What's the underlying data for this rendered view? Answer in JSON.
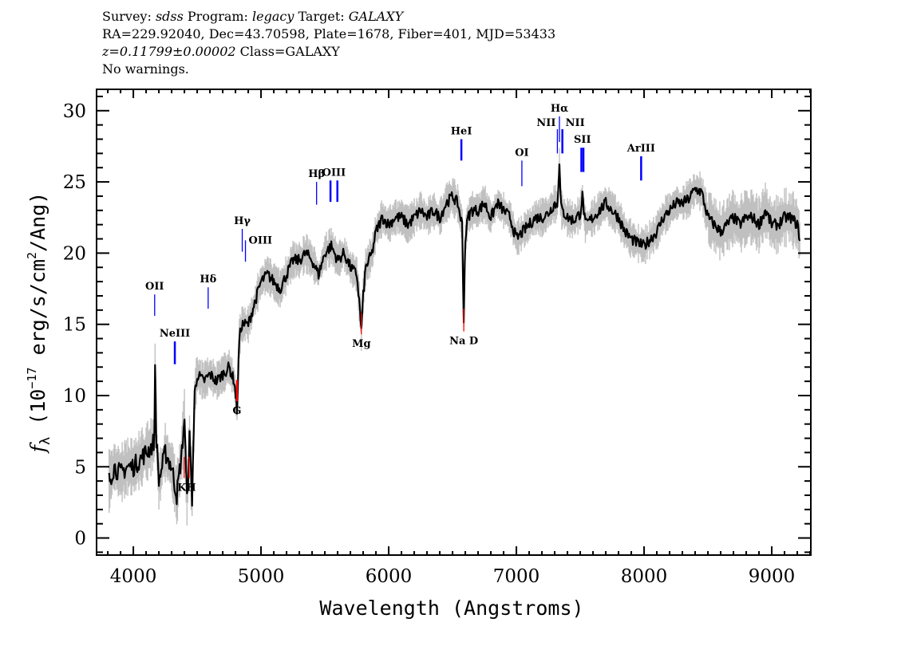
{
  "header": {
    "line1": [
      {
        "text": "Survey: ",
        "italic": false
      },
      {
        "text": "sdss",
        "italic": true
      },
      {
        "text": " Program: ",
        "italic": false
      },
      {
        "text": "legacy",
        "italic": true
      },
      {
        "text": " Target: ",
        "italic": false
      },
      {
        "text": "GALAXY",
        "italic": true
      }
    ],
    "line2": "RA=229.92040, Dec=43.70598, Plate=1678, Fiber=401, MJD=53433",
    "line3_z": "z=0.11799±0.00002",
    "line3_class": " Class=GALAXY",
    "line4": "No warnings."
  },
  "chart_data": {
    "type": "line",
    "xlabel": "Wavelength (Angstroms)",
    "ylabel": "fλ (10^-17 erg/s/cm^2/Ang)",
    "ylabel_parts": {
      "f": "f",
      "sub": "λ",
      "pre": " (10",
      "exp1": "−17",
      "mid": " erg/s/cm",
      "exp2": "2",
      "post": "/Ang)"
    },
    "xlim": [
      3712,
      9306
    ],
    "ylim": [
      -1.2,
      31.5
    ],
    "xticks": [
      4000,
      5000,
      6000,
      7000,
      8000,
      9000
    ],
    "yticks": [
      0,
      5,
      10,
      15,
      20,
      25,
      30
    ],
    "grid": false,
    "colors": {
      "flux": "#000000",
      "error": "#c0c0c0",
      "emission": "#0000ff",
      "absorption": "#ff0000"
    },
    "spectrum": {
      "x": [
        3810,
        3850,
        3900,
        3950,
        4000,
        4050,
        4100,
        4150,
        4165,
        4170,
        4180,
        4200,
        4250,
        4300,
        4340,
        4380,
        4400,
        4420,
        4440,
        4460,
        4480,
        4500,
        4550,
        4600,
        4650,
        4700,
        4750,
        4790,
        4812,
        4830,
        4850,
        4900,
        4950,
        5000,
        5050,
        5100,
        5150,
        5200,
        5250,
        5300,
        5350,
        5400,
        5450,
        5500,
        5550,
        5600,
        5650,
        5700,
        5750,
        5775,
        5786,
        5800,
        5820,
        5870,
        5900,
        5950,
        6000,
        6050,
        6100,
        6150,
        6200,
        6250,
        6300,
        6350,
        6400,
        6450,
        6500,
        6540,
        6575,
        6582,
        6588,
        6595,
        6600,
        6620,
        6650,
        6700,
        6750,
        6800,
        6850,
        6900,
        6950,
        7000,
        7050,
        7100,
        7150,
        7200,
        7250,
        7300,
        7320,
        7337,
        7345,
        7355,
        7400,
        7450,
        7500,
        7517,
        7540,
        7600,
        7650,
        7700,
        7750,
        7800,
        7850,
        7900,
        7950,
        8000,
        8050,
        8100,
        8150,
        8200,
        8250,
        8300,
        8350,
        8400,
        8450,
        8500,
        8550,
        8600,
        8650,
        8700,
        8750,
        8800,
        8850,
        8900,
        8950,
        9000,
        9050,
        9100,
        9150,
        9200,
        9220
      ],
      "y": [
        4,
        5,
        4.5,
        5,
        5,
        5.5,
        6,
        6.5,
        7,
        12.5,
        7,
        4,
        6,
        5,
        3,
        6,
        8.5,
        2.5,
        7,
        2.8,
        10,
        11.5,
        11,
        11.5,
        11,
        11.5,
        12,
        11,
        9,
        14,
        15,
        15,
        16.5,
        18,
        18.5,
        18,
        17.5,
        18.5,
        19.5,
        19.5,
        20,
        19.5,
        18.5,
        20,
        20.5,
        19.5,
        20,
        19,
        18.5,
        16,
        14.5,
        17,
        19,
        20,
        21.5,
        22.5,
        22,
        22.5,
        22.5,
        22,
        22.5,
        23,
        22.5,
        23,
        22.5,
        23.5,
        24,
        23.5,
        22,
        18,
        15.5,
        19,
        21,
        22.5,
        23,
        23,
        23.5,
        22.5,
        23.5,
        23,
        22.5,
        21,
        21.5,
        22,
        22.5,
        22.5,
        22.8,
        23.5,
        23.3,
        26.5,
        24,
        23,
        22.5,
        22.3,
        22.8,
        24,
        22,
        22.5,
        23,
        23.5,
        23,
        22.5,
        21.5,
        21,
        20.7,
        20.5,
        21,
        21.5,
        22.5,
        23,
        23.5,
        23.5,
        23.8,
        24.5,
        24.3,
        22.5,
        22,
        21.5,
        22,
        22.5,
        22,
        22.5,
        22.5,
        22,
        23,
        22,
        22,
        22.5,
        22.5,
        22,
        21
      ]
    },
    "lines": [
      {
        "label": "OII",
        "wavelengths": [
          4167
        ],
        "type": "emission",
        "y_range": [
          15.6,
          17.1
        ],
        "label_pos": "above",
        "thick": false
      },
      {
        "label": "NeIII",
        "wavelengths": [
          4325
        ],
        "type": "emission",
        "y_range": [
          12.2,
          13.8
        ],
        "label_pos": "above",
        "thick": true
      },
      {
        "label": "KH",
        "wavelengths": [
          4398,
          4437
        ],
        "type": "absorption",
        "y_range": [
          4.2,
          5.7
        ],
        "label_pos": "below",
        "thick": false
      },
      {
        "label": "Hδ",
        "wavelengths": [
          4586
        ],
        "type": "emission",
        "y_range": [
          16.1,
          17.6
        ],
        "label_pos": "above",
        "thick": false
      },
      {
        "label": "G",
        "wavelengths": [
          4812
        ],
        "type": "absorption",
        "y_range": [
          9.6,
          11.1
        ],
        "label_pos": "below",
        "thick": true
      },
      {
        "label": "Hγ",
        "wavelengths": [
          4853
        ],
        "type": "emission",
        "y_range": [
          20.1,
          21.7
        ],
        "label_pos": "above",
        "thick": false
      },
      {
        "label": "OIII",
        "wavelengths": [
          4878
        ],
        "type": "emission",
        "y_range": [
          19.4,
          20.9
        ],
        "label_pos": "above-right",
        "thick": false
      },
      {
        "label": "Hβ",
        "wavelengths": [
          5435
        ],
        "type": "emission",
        "y_range": [
          23.4,
          25.0
        ],
        "label_pos": "above",
        "thick": false
      },
      {
        "label": "OIII",
        "wavelengths": [
          5544,
          5598
        ],
        "type": "emission",
        "y_range": [
          23.6,
          25.1
        ],
        "label_pos": "above",
        "thick": true
      },
      {
        "label": "Mg",
        "wavelengths": [
          5786
        ],
        "type": "absorption",
        "y_range": [
          14.3,
          15.8
        ],
        "label_pos": "below",
        "thick": false
      },
      {
        "label": "HeI",
        "wavelengths": [
          6569
        ],
        "type": "emission",
        "y_range": [
          26.5,
          28.0
        ],
        "label_pos": "above",
        "thick": true
      },
      {
        "label": "Na  D",
        "wavelengths": [
          6588
        ],
        "type": "absorption",
        "y_range": [
          14.5,
          16.1
        ],
        "label_pos": "below",
        "thick": false
      },
      {
        "label": "OI",
        "wavelengths": [
          7043
        ],
        "type": "emission",
        "y_range": [
          24.7,
          26.5
        ],
        "label_pos": "above",
        "thick": false
      },
      {
        "label": "NII",
        "wavelengths": [
          7321
        ],
        "type": "emission",
        "y_range": [
          27.0,
          28.7
        ],
        "label_pos": "above-left",
        "thick": false
      },
      {
        "label": "Hα",
        "wavelengths": [
          7337
        ],
        "type": "emission",
        "y_range": [
          27.8,
          29.6
        ],
        "label_pos": "above",
        "thick": false
      },
      {
        "label": "NII",
        "wavelengths": [
          7360
        ],
        "type": "emission",
        "y_range": [
          27.0,
          28.7
        ],
        "label_pos": "above-right",
        "thick": true
      },
      {
        "label": "SII",
        "wavelengths": [
          7509,
          7525
        ],
        "type": "emission",
        "y_range": [
          25.7,
          27.4
        ],
        "label_pos": "above",
        "thick": true
      },
      {
        "label": "ArIII",
        "wavelengths": [
          7977
        ],
        "type": "emission",
        "y_range": [
          25.1,
          26.8
        ],
        "label_pos": "above",
        "thick": true
      }
    ]
  }
}
